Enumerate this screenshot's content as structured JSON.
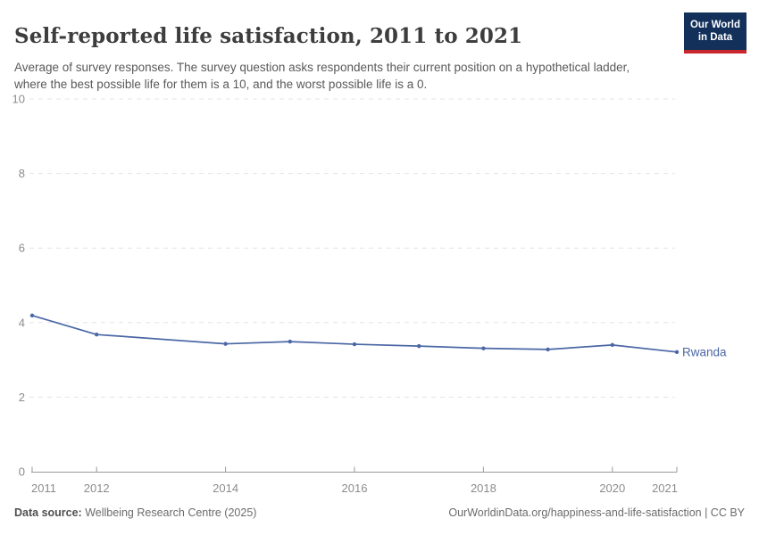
{
  "header": {
    "title": "Self-reported life satisfaction, 2011 to 2021",
    "subtitle": "Average of survey responses. The survey question asks respondents their current position on a hypothetical ladder, where the best possible life for them is a 10, and the worst possible life is a 0.",
    "logo": {
      "line1": "Our World",
      "line2": "in Data"
    }
  },
  "chart_data": {
    "type": "line",
    "title": "Self-reported life satisfaction, 2011 to 2021",
    "xlabel": "",
    "ylabel": "",
    "xlim": [
      2011,
      2021
    ],
    "ylim": [
      0,
      10
    ],
    "x_ticks": [
      2011,
      2012,
      2014,
      2016,
      2018,
      2020,
      2021
    ],
    "y_ticks": [
      0,
      2,
      4,
      6,
      8,
      10
    ],
    "grid": "horizontal-dashed",
    "legend_position": "end-of-line-label",
    "series": [
      {
        "name": "Rwanda",
        "points": [
          [
            2011,
            4.19
          ],
          [
            2012,
            3.68
          ],
          [
            2014,
            3.43
          ],
          [
            2015,
            3.49
          ],
          [
            2016,
            3.42
          ],
          [
            2017,
            3.37
          ],
          [
            2018,
            3.31
          ],
          [
            2019,
            3.28
          ],
          [
            2020,
            3.4
          ],
          [
            2021,
            3.21
          ]
        ]
      }
    ]
  },
  "colors": {
    "series": "#4a67a5",
    "grid": "#e4e4e4",
    "axis": "#9a9a9a",
    "tick_label": "#8c8c8c",
    "logo_bg": "#12305a",
    "logo_accent": "#c9252d"
  },
  "footer": {
    "source_label": "Data source:",
    "source_text": " Wellbeing Research Centre (2025)",
    "credit": "OurWorldinData.org/happiness-and-life-satisfaction | CC BY"
  }
}
